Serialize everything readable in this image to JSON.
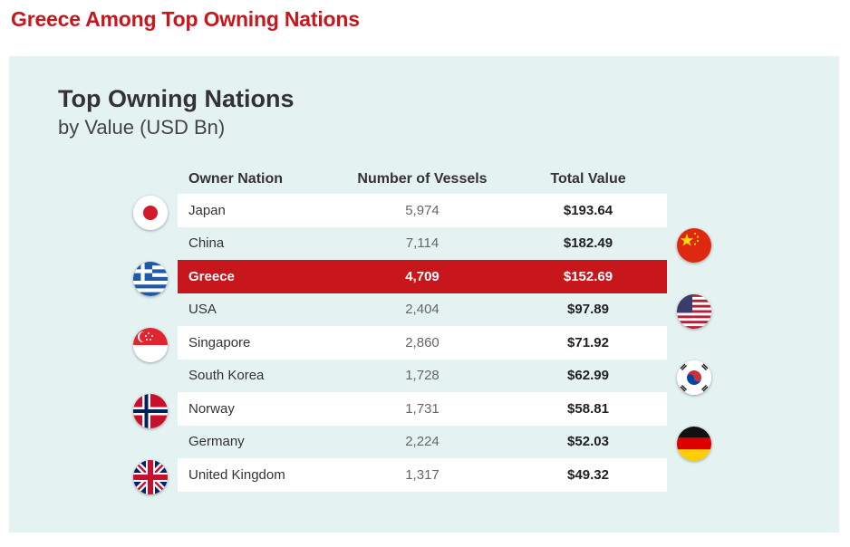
{
  "page_heading": "Greece Among Top Owning Nations",
  "chart_data": {
    "type": "table",
    "title": "Top Owning Nations",
    "subtitle": "by Value (USD Bn)",
    "columns": [
      "Owner Nation",
      "Number of Vessels",
      "Total Value"
    ],
    "rows": [
      {
        "nation": "Japan",
        "vessels": "5,974",
        "value": "$193.64"
      },
      {
        "nation": "China",
        "vessels": "7,114",
        "value": "$182.49"
      },
      {
        "nation": "Greece",
        "vessels": "4,709",
        "value": "$152.69"
      },
      {
        "nation": "USA",
        "vessels": "2,404",
        "value": "$97.89"
      },
      {
        "nation": "Singapore",
        "vessels": "2,860",
        "value": "$71.92"
      },
      {
        "nation": "South Korea",
        "vessels": "1,728",
        "value": "$62.99"
      },
      {
        "nation": "Norway",
        "vessels": "1,731",
        "value": "$58.81"
      },
      {
        "nation": "Germany",
        "vessels": "2,224",
        "value": "$52.03"
      },
      {
        "nation": "United Kingdom",
        "vessels": "1,317",
        "value": "$49.32"
      }
    ],
    "highlighted_row": "Greece",
    "highlight_color": "#c8161d"
  },
  "flags": [
    "japan-flag",
    "china-flag",
    "greece-flag",
    "usa-flag",
    "singapore-flag",
    "south-korea-flag",
    "norway-flag",
    "germany-flag",
    "united-kingdom-flag"
  ]
}
